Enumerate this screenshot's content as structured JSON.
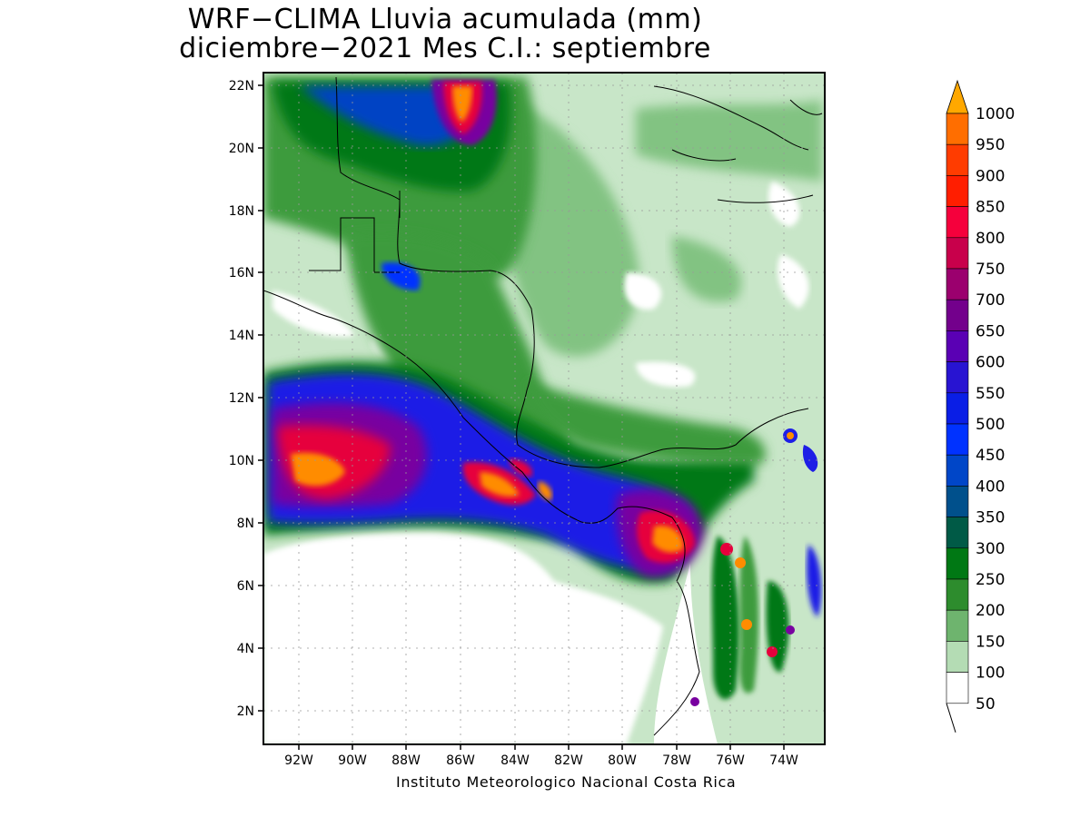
{
  "title_line1": "WRF−CLIMA Lluvia acumulada (mm)",
  "title_line2": "diciembre−2021 Mes C.I.: septiembre",
  "credit": "Instituto Meteorologico Nacional Costa Rica",
  "lat_labels": [
    "22N",
    "20N",
    "18N",
    "16N",
    "14N",
    "12N",
    "10N",
    "8N",
    "6N",
    "4N",
    "2N"
  ],
  "lon_labels": [
    "92W",
    "90W",
    "88W",
    "86W",
    "84W",
    "82W",
    "80W",
    "78W",
    "76W",
    "74W"
  ],
  "colorbar": {
    "levels": [
      "1000",
      "950",
      "900",
      "850",
      "800",
      "750",
      "700",
      "650",
      "600",
      "550",
      "500",
      "450",
      "400",
      "350",
      "300",
      "250",
      "200",
      "150",
      "100",
      "50"
    ],
    "colors": [
      "#ffa800",
      "#ff6e00",
      "#ff3c00",
      "#ff1e00",
      "#f5003c",
      "#c8004b",
      "#9b006e",
      "#73008c",
      "#5a00b4",
      "#2814d2",
      "#0a1ee6",
      "#0032ff",
      "#0046c8",
      "#00508c",
      "#005a46",
      "#007814",
      "#2d8c2d",
      "#6eb46e",
      "#b4dcb4",
      "#ffffff"
    ]
  },
  "colors": {
    "water_white": "#ffffff",
    "light_green": "#c8e6c8",
    "mid_green": "#82c382",
    "green": "#3c9b3c",
    "dark_green": "#007814",
    "blue": "#1e1ee6",
    "purple": "#7800a0",
    "red": "#e6003c",
    "orange": "#ff8c00"
  }
}
